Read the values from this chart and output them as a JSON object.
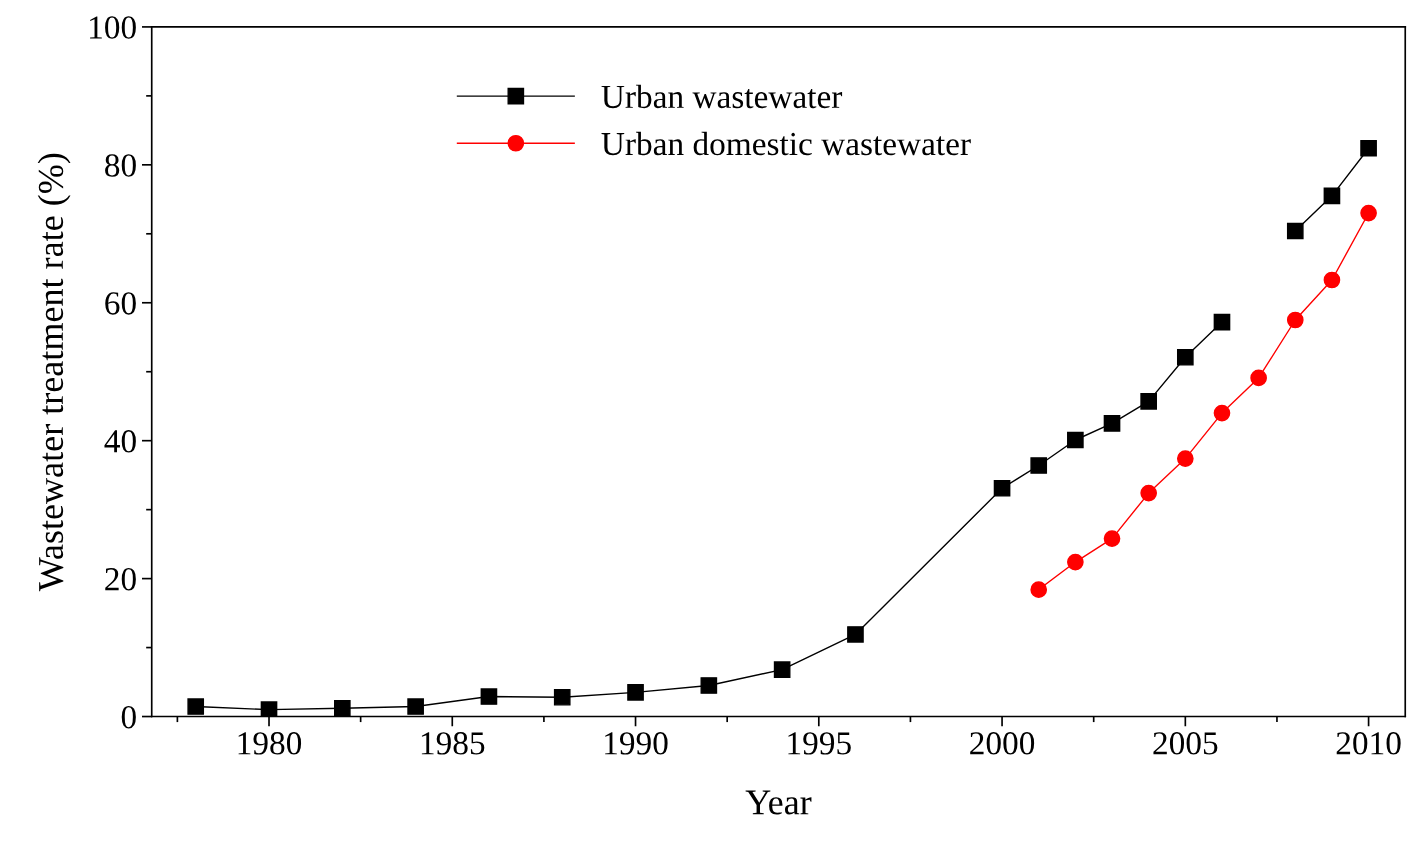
{
  "chart_data": {
    "type": "line",
    "xlabel": "Year",
    "ylabel": "Wastewater treatment rate (%)",
    "xlim": [
      1976.8,
      2011
    ],
    "xticks": [
      1980,
      1985,
      1990,
      1995,
      2000,
      2005,
      2010
    ],
    "ylim": [
      0,
      100
    ],
    "yticks": [
      0,
      20,
      40,
      60,
      80,
      100
    ],
    "grid": false,
    "legend": "top left",
    "line_style": "solid",
    "series": [
      {
        "name": "Urban wastewater",
        "color": "#000000",
        "marker": "square",
        "x": [
          1978,
          1980,
          1982,
          1984,
          1986,
          1988,
          1990,
          1992,
          1994,
          1996,
          2000,
          2001,
          2002,
          2003,
          2004,
          2005,
          2006,
          2007,
          2008,
          2009,
          2010
        ],
        "values": [
          1.45,
          1.0,
          1.2,
          1.45,
          2.9,
          2.8,
          3.5,
          4.5,
          6.8,
          11.9,
          33.1,
          36.4,
          40.1,
          42.5,
          45.7,
          52.1,
          57.2,
          null,
          70.4,
          75.5,
          82.4
        ]
      },
      {
        "name": "Urban domestic wastewater",
        "color": "#ff0000",
        "marker": "circle",
        "x": [
          2001,
          2002,
          2003,
          2004,
          2005,
          2006,
          2007,
          2008,
          2009,
          2010
        ],
        "values": [
          18.4,
          22.4,
          25.8,
          32.4,
          37.4,
          44.0,
          49.1,
          57.5,
          63.3,
          73.0
        ]
      }
    ]
  }
}
